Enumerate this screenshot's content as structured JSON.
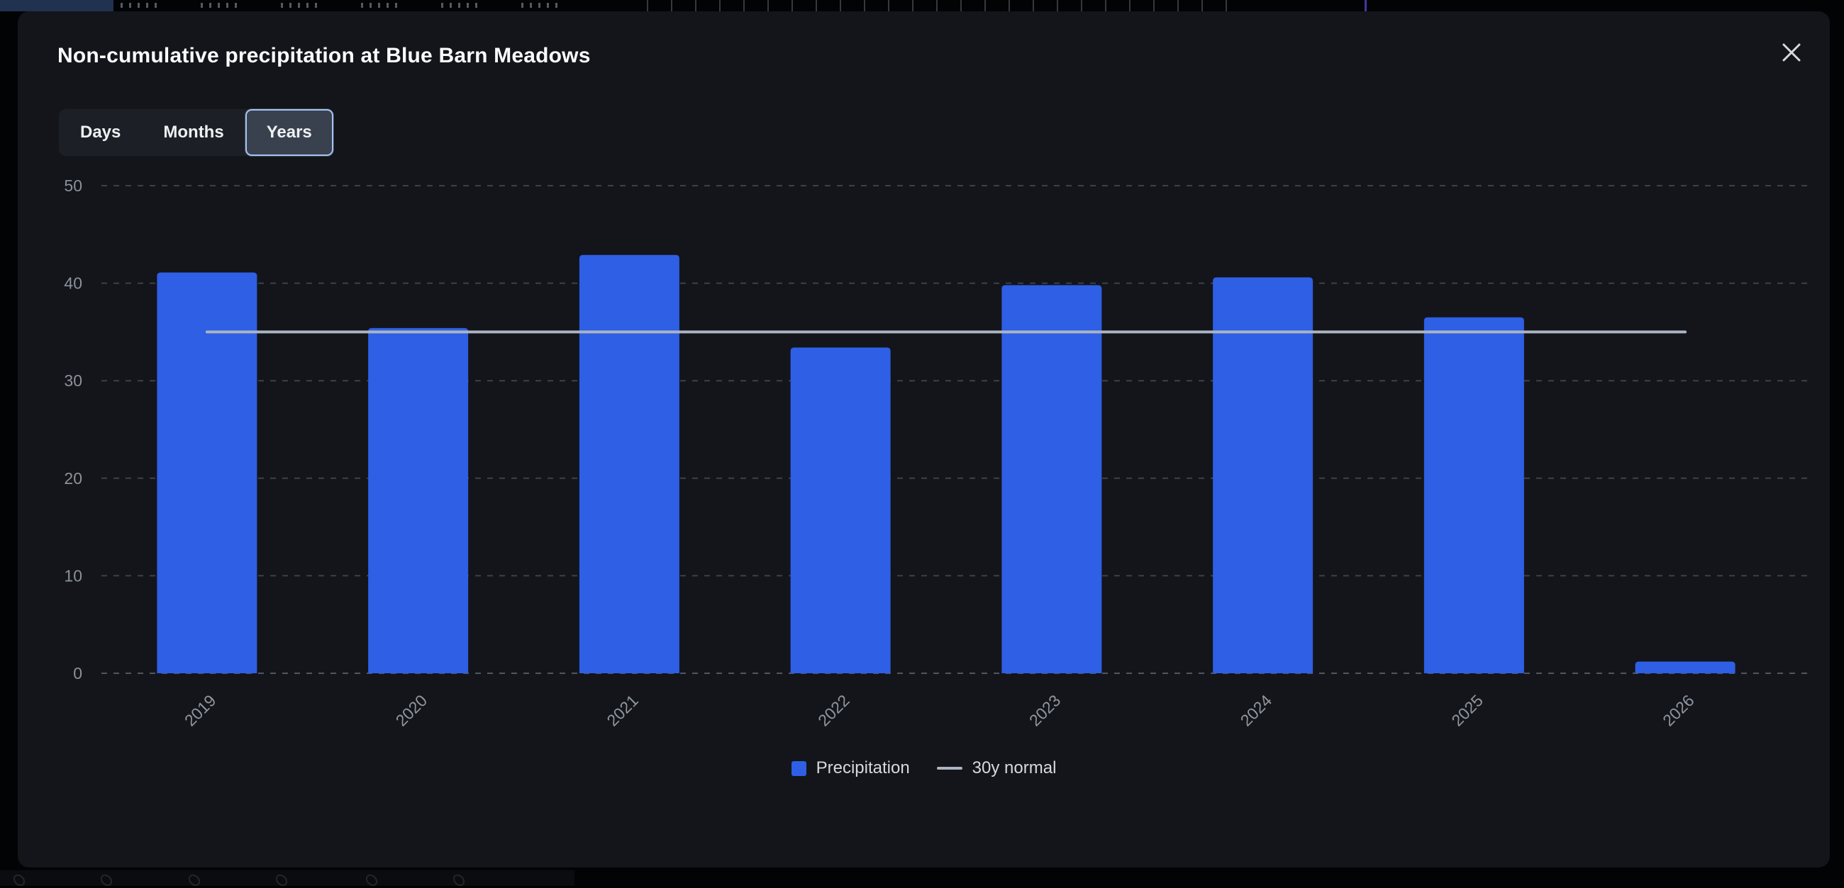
{
  "modal": {
    "title": "Non-cumulative precipitation at Blue Barn Meadows",
    "tabs": [
      {
        "label": "Days",
        "selected": false
      },
      {
        "label": "Months",
        "selected": false
      },
      {
        "label": "Years",
        "selected": true
      }
    ]
  },
  "legend": {
    "precipitation_label": "Precipitation",
    "normal_label": "30y normal"
  },
  "colors": {
    "modal_bg": "#13151a",
    "bar": "#2e5fe5",
    "normal_line": "#abb4c2",
    "grid": "#3c4048",
    "zero_line": "#51565e",
    "y_tick_text": "#8b919b",
    "x_tick_text": "#8f96a0",
    "selected_tab_border": "#a6c4f0"
  },
  "chart_data": {
    "type": "bar",
    "categories": [
      "2019",
      "2020",
      "2021",
      "2022",
      "2023",
      "2024",
      "2025",
      "2026"
    ],
    "series": [
      {
        "name": "Precipitation",
        "type": "bar",
        "values": [
          41.1,
          35.4,
          42.9,
          33.4,
          39.8,
          40.6,
          36.5,
          1.2
        ]
      },
      {
        "name": "30y normal",
        "type": "line",
        "values": [
          35,
          35,
          35,
          35,
          35,
          35,
          35,
          35
        ]
      }
    ],
    "title": "Non-cumulative precipitation at Blue Barn Meadows",
    "xlabel": "",
    "ylabel": "",
    "ylim": [
      0,
      50
    ],
    "yticks": [
      0,
      10,
      20,
      30,
      40,
      50
    ],
    "grid": "horizontal-dashed",
    "legend_position": "bottom-center"
  }
}
